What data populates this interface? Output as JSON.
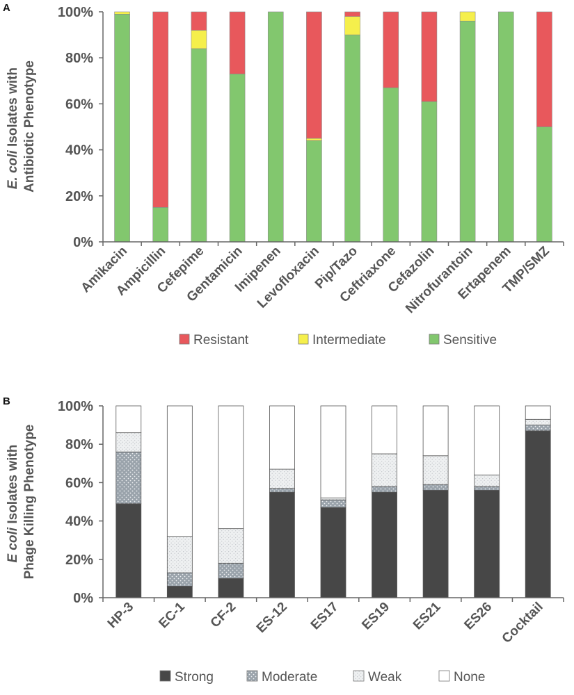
{
  "colors": {
    "resistant": "#e8585c",
    "intermediate": "#f5ef4c",
    "sensitive": "#82c76e",
    "strong": "#474747",
    "moderate": "#9aa3ab",
    "weak": "#e3e5e7",
    "none": "#ffffff",
    "axis": "#666666",
    "text": "#555555"
  },
  "chart_data": [
    {
      "panel": "A",
      "type": "bar",
      "stacked": true,
      "normalized": true,
      "ylabel_italic": "E. coli",
      "ylabel_rest": " Isolates with",
      "ylabel_line2": "Antibiotic Phenotype",
      "ylim": [
        0,
        100
      ],
      "yticks": [
        "0%",
        "20%",
        "40%",
        "60%",
        "80%",
        "100%"
      ],
      "categories": [
        "Amikacin",
        "Ampicillin",
        "Cefepime",
        "Gentamicin",
        "Imipenen",
        "Levofloxacin",
        "Pip/Tazo",
        "Ceftriaxone",
        "Cefazolin",
        "Nitrofurantoin",
        "Ertapenem",
        "TMP/SMZ"
      ],
      "series": [
        {
          "name": "Sensitive",
          "key": "sensitive",
          "values": [
            99,
            15,
            84,
            73,
            100,
            44,
            90,
            67,
            61,
            96,
            100,
            50
          ]
        },
        {
          "name": "Intermediate",
          "key": "intermediate",
          "values": [
            1,
            0,
            8,
            0,
            0,
            1,
            8,
            0,
            0,
            4,
            0,
            0
          ]
        },
        {
          "name": "Resistant",
          "key": "resistant",
          "values": [
            0,
            85,
            8,
            27,
            0,
            55,
            2,
            33,
            39,
            0,
            0,
            50
          ]
        }
      ],
      "legend": [
        {
          "name": "Resistant",
          "key": "resistant"
        },
        {
          "name": "Intermediate",
          "key": "intermediate"
        },
        {
          "name": "Sensitive",
          "key": "sensitive"
        }
      ],
      "legend_position": "bottom"
    },
    {
      "panel": "B",
      "type": "bar",
      "stacked": true,
      "normalized": true,
      "ylabel_italic": "E coli",
      "ylabel_rest": " Isolates with",
      "ylabel_line2": "Phage Killing Phenotype",
      "ylim": [
        0,
        100
      ],
      "yticks": [
        "0%",
        "20%",
        "40%",
        "60%",
        "80%",
        "100%"
      ],
      "categories": [
        "HP-3",
        "EC-1",
        "CF-2",
        "ES-12",
        "ES17",
        "ES19",
        "ES21",
        "ES26",
        "Cocktail"
      ],
      "series": [
        {
          "name": "Strong",
          "key": "strong",
          "values": [
            49,
            6,
            10,
            55,
            47,
            55,
            56,
            56,
            87
          ]
        },
        {
          "name": "Moderate",
          "key": "moderate",
          "values": [
            27,
            7,
            8,
            2,
            4,
            3,
            3,
            2,
            3
          ]
        },
        {
          "name": "Weak",
          "key": "weak",
          "values": [
            10,
            19,
            18,
            10,
            1,
            17,
            15,
            6,
            3
          ]
        },
        {
          "name": "None",
          "key": "none",
          "values": [
            14,
            68,
            64,
            33,
            48,
            25,
            26,
            36,
            7
          ]
        }
      ],
      "legend": [
        {
          "name": "Strong",
          "key": "strong"
        },
        {
          "name": "Moderate",
          "key": "moderate"
        },
        {
          "name": "Weak",
          "key": "weak"
        },
        {
          "name": "None",
          "key": "none"
        }
      ],
      "legend_position": "bottom"
    }
  ]
}
